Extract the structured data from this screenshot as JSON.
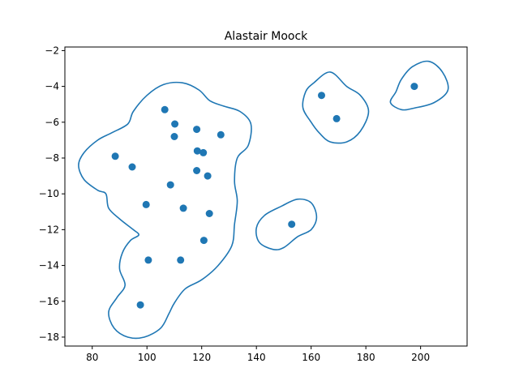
{
  "chart_data": {
    "type": "scatter",
    "title": "Alastair Moock",
    "xlabel": "",
    "ylabel": "",
    "xlim": [
      70,
      217
    ],
    "ylim": [
      -18.5,
      -1.8
    ],
    "xticks": [
      80,
      100,
      120,
      140,
      160,
      180,
      200
    ],
    "yticks": [
      -18,
      -16,
      -14,
      -12,
      -10,
      -8,
      -6,
      -4,
      -2
    ],
    "grid": false,
    "point_color": "#1f77b4",
    "contour_color": "#1f77b4",
    "points": [
      {
        "x": 106.5,
        "y": -5.3
      },
      {
        "x": 110.2,
        "y": -6.1
      },
      {
        "x": 110.0,
        "y": -6.8
      },
      {
        "x": 118.2,
        "y": -6.4
      },
      {
        "x": 127.0,
        "y": -6.7
      },
      {
        "x": 88.4,
        "y": -7.9
      },
      {
        "x": 94.6,
        "y": -8.5
      },
      {
        "x": 118.4,
        "y": -7.6
      },
      {
        "x": 120.6,
        "y": -7.7
      },
      {
        "x": 118.2,
        "y": -8.7
      },
      {
        "x": 122.2,
        "y": -9.0
      },
      {
        "x": 108.6,
        "y": -9.5
      },
      {
        "x": 99.7,
        "y": -10.6
      },
      {
        "x": 113.3,
        "y": -10.8
      },
      {
        "x": 122.8,
        "y": -11.1
      },
      {
        "x": 120.8,
        "y": -12.6
      },
      {
        "x": 100.5,
        "y": -13.7
      },
      {
        "x": 112.3,
        "y": -13.7
      },
      {
        "x": 97.6,
        "y": -16.2
      },
      {
        "x": 152.9,
        "y": -11.7
      },
      {
        "x": 163.8,
        "y": -4.5
      },
      {
        "x": 169.3,
        "y": -5.8
      },
      {
        "x": 197.7,
        "y": -4.0
      }
    ],
    "contours": [
      [
        [
          87,
          -6.6
        ],
        [
          93,
          -6.1
        ],
        [
          95,
          -5.4
        ],
        [
          100,
          -4.5
        ],
        [
          106,
          -3.9
        ],
        [
          113,
          -3.8
        ],
        [
          119,
          -4.2
        ],
        [
          123,
          -4.8
        ],
        [
          128,
          -5.1
        ],
        [
          134,
          -5.4
        ],
        [
          138,
          -6.1
        ],
        [
          137,
          -7.3
        ],
        [
          133,
          -8.0
        ],
        [
          132,
          -9.3
        ],
        [
          133,
          -10.4
        ],
        [
          132,
          -11.7
        ],
        [
          131,
          -12.9
        ],
        [
          126,
          -14.0
        ],
        [
          120,
          -14.8
        ],
        [
          114,
          -15.3
        ],
        [
          110,
          -16.1
        ],
        [
          108,
          -16.7
        ],
        [
          105,
          -17.5
        ],
        [
          99,
          -18.0
        ],
        [
          93,
          -18.0
        ],
        [
          88,
          -17.5
        ],
        [
          86,
          -16.6
        ],
        [
          89,
          -15.8
        ],
        [
          92,
          -15.1
        ],
        [
          90,
          -14.2
        ],
        [
          91,
          -13.3
        ],
        [
          94,
          -12.6
        ],
        [
          97,
          -12.3
        ],
        [
          95,
          -12.0
        ],
        [
          90,
          -11.4
        ],
        [
          86,
          -10.8
        ],
        [
          85,
          -10.0
        ],
        [
          82,
          -9.8
        ],
        [
          77,
          -9.2
        ],
        [
          75,
          -8.4
        ],
        [
          77,
          -7.7
        ],
        [
          82,
          -7.0
        ],
        [
          87,
          -6.6
        ]
      ],
      [
        [
          161,
          -3.8
        ],
        [
          167,
          -3.2
        ],
        [
          173,
          -4.0
        ],
        [
          178,
          -4.5
        ],
        [
          181,
          -5.4
        ],
        [
          178,
          -6.5
        ],
        [
          173,
          -7.1
        ],
        [
          167,
          -7.1
        ],
        [
          163,
          -6.6
        ],
        [
          160,
          -6.0
        ],
        [
          157,
          -5.2
        ],
        [
          158,
          -4.3
        ],
        [
          161,
          -3.8
        ]
      ],
      [
        [
          197,
          -2.9
        ],
        [
          203,
          -2.6
        ],
        [
          208,
          -3.2
        ],
        [
          210,
          -4.2
        ],
        [
          205,
          -4.9
        ],
        [
          198,
          -5.2
        ],
        [
          193,
          -5.3
        ],
        [
          189,
          -4.9
        ],
        [
          191,
          -4.3
        ],
        [
          193,
          -3.6
        ],
        [
          197,
          -2.9
        ]
      ],
      [
        [
          149,
          -10.7
        ],
        [
          155,
          -10.3
        ],
        [
          160,
          -10.5
        ],
        [
          162,
          -11.3
        ],
        [
          160,
          -12.0
        ],
        [
          155,
          -12.4
        ],
        [
          150,
          -13.0
        ],
        [
          146,
          -13.1
        ],
        [
          141,
          -12.7
        ],
        [
          140,
          -11.9
        ],
        [
          143,
          -11.2
        ],
        [
          149,
          -10.7
        ]
      ]
    ]
  }
}
